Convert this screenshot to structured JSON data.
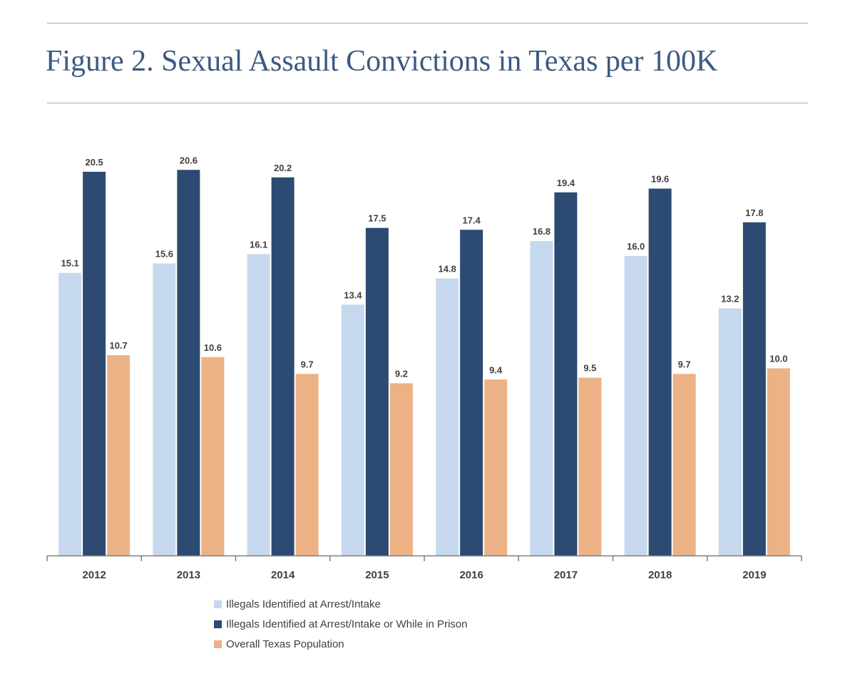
{
  "header": {
    "title": "Figure 2. Sexual Assault Convictions in Texas per 100K"
  },
  "chart_data": {
    "type": "bar",
    "title": "Figure 2. Sexual Assault Convictions in Texas per 100K",
    "xlabel": "",
    "ylabel": "",
    "categories": [
      "2012",
      "2013",
      "2014",
      "2015",
      "2016",
      "2017",
      "2018",
      "2019"
    ],
    "series": [
      {
        "name": "Illegals Identified at Arrest/Intake",
        "color": "#c5d8ee",
        "values": [
          15.1,
          15.6,
          16.1,
          13.4,
          14.8,
          16.8,
          16.0,
          13.2
        ]
      },
      {
        "name": "Illegals Identified at Arrest/Intake or While in Prison",
        "color": "#2c4a72",
        "values": [
          20.5,
          20.6,
          20.2,
          17.5,
          17.4,
          19.4,
          19.6,
          17.8
        ]
      },
      {
        "name": "Overall Texas Population",
        "color": "#ecb285",
        "values": [
          10.7,
          10.6,
          9.7,
          9.2,
          9.4,
          9.5,
          9.7,
          10.0
        ]
      }
    ],
    "ylim": [
      0,
      21
    ],
    "grid": false,
    "data_labels": true,
    "legend_position": "bottom"
  }
}
